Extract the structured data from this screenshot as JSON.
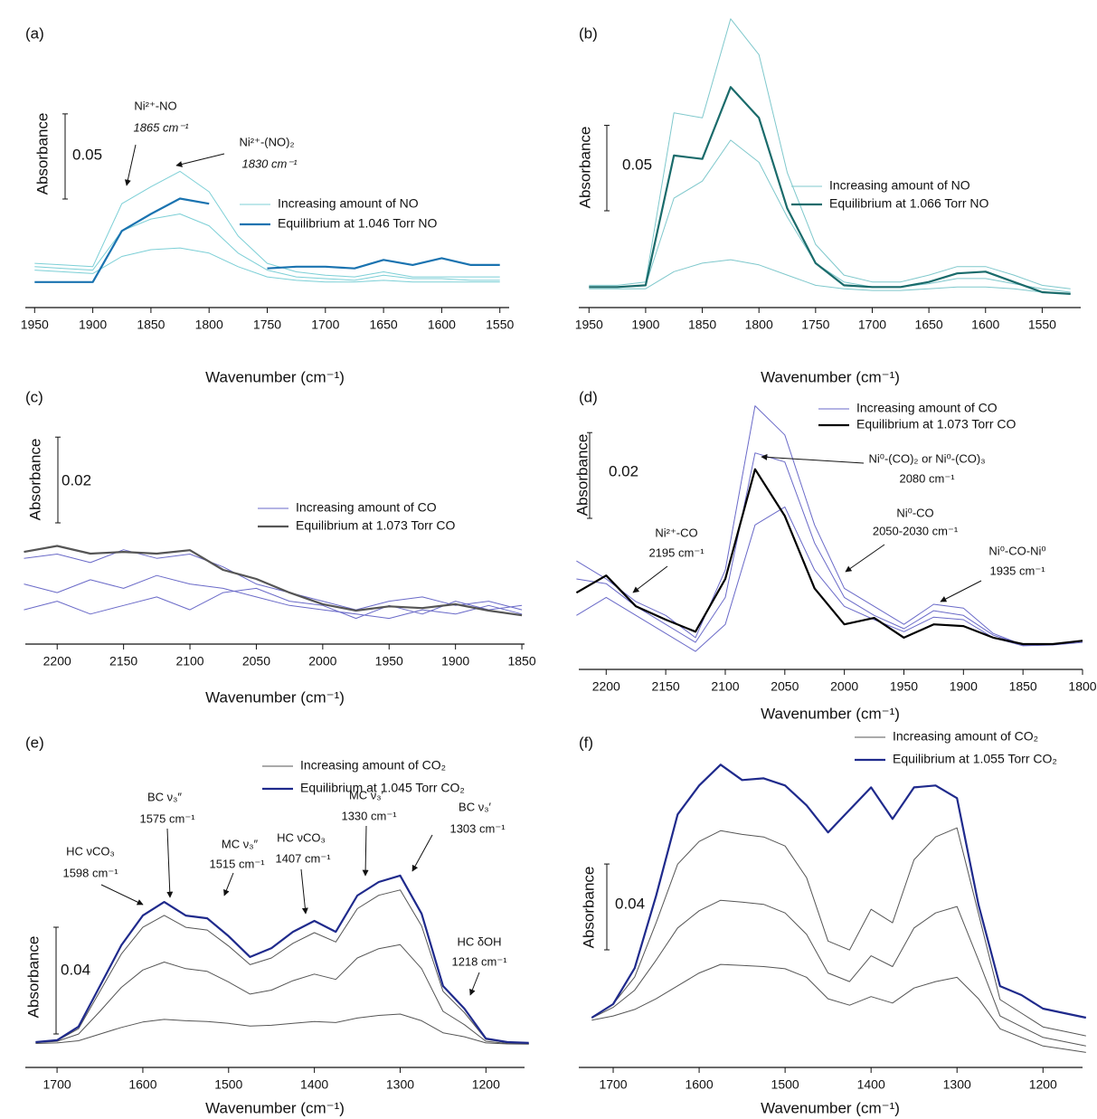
{
  "chart_data": [
    {
      "type": "line",
      "label": "(a)",
      "xlabel": "Wavenumber (cm⁻¹)",
      "ylabel": "Absorbance",
      "scale_bar": 0.05,
      "xlim": [
        1958,
        1542
      ],
      "ylim": [
        0,
        0.17
      ],
      "xticks": [
        1950,
        1900,
        1850,
        1800,
        1750,
        1700,
        1650,
        1600,
        1550
      ],
      "x": [
        1950,
        1925,
        1900,
        1875,
        1850,
        1825,
        1800,
        1775,
        1750,
        1725,
        1700,
        1675,
        1650,
        1625,
        1600,
        1575,
        1550
      ],
      "series": [
        {
          "name": "Increasing amount of NO",
          "color": "#7ccfd6",
          "line_width": 1,
          "values": [
            [
              0.026,
              0.025,
              0.024,
              0.061,
              0.071,
              0.08,
              0.068,
              0.042,
              0.026,
              0.021,
              0.019,
              0.018,
              0.021,
              0.018,
              0.018,
              0.018,
              0.018
            ],
            [
              0.024,
              0.023,
              0.022,
              0.045,
              0.052,
              0.055,
              0.048,
              0.032,
              0.022,
              0.018,
              0.017,
              0.016,
              0.019,
              0.017,
              0.017,
              0.016,
              0.016
            ],
            [
              0.022,
              0.021,
              0.02,
              0.03,
              0.034,
              0.035,
              0.032,
              0.024,
              0.018,
              0.016,
              0.015,
              0.015,
              0.016,
              0.015,
              0.015,
              0.015,
              0.015
            ]
          ]
        },
        {
          "name": "Equilibrium at 1.046 Torr NO",
          "color": "#1a73b0",
          "line_width": 2.2,
          "values": [
            [
              0.015,
              0.015,
              0.015,
              0.045,
              0.055,
              0.064,
              0.061,
              null,
              0.023,
              0.024,
              0.024,
              0.023,
              0.028,
              0.025,
              0.029,
              0.025,
              0.025
            ]
          ]
        }
      ],
      "annotations": [
        {
          "text": "Ni²⁺-NO",
          "subtext": "1865 cm⁻¹"
        },
        {
          "text": "Ni²⁺-(NO)₂",
          "subtext": "1830 cm⁻¹"
        }
      ]
    },
    {
      "type": "line",
      "label": "(b)",
      "xlabel": "Wavenumber (cm⁻¹)",
      "ylabel": "Absorbance",
      "scale_bar": 0.05,
      "xlim": [
        1959,
        1516
      ],
      "ylim": [
        0,
        0.18
      ],
      "xticks": [
        1950,
        1900,
        1850,
        1800,
        1750,
        1700,
        1650,
        1600,
        1550
      ],
      "x": [
        1950,
        1925,
        1900,
        1875,
        1850,
        1825,
        1800,
        1775,
        1750,
        1725,
        1700,
        1675,
        1650,
        1625,
        1600,
        1575,
        1550,
        1525
      ],
      "series": [
        {
          "name": "Increasing amount of NO",
          "color": "#7fc8cc",
          "line_width": 1,
          "values": [
            [
              0.013,
              0.013,
              0.015,
              0.114,
              0.111,
              0.169,
              0.148,
              0.079,
              0.037,
              0.019,
              0.015,
              0.015,
              0.019,
              0.024,
              0.024,
              0.019,
              0.013,
              0.011
            ],
            [
              0.012,
              0.012,
              0.013,
              0.064,
              0.074,
              0.098,
              0.085,
              0.053,
              0.026,
              0.015,
              0.012,
              0.012,
              0.014,
              0.017,
              0.017,
              0.014,
              0.011,
              0.009
            ],
            [
              0.011,
              0.011,
              0.011,
              0.021,
              0.026,
              0.028,
              0.025,
              0.019,
              0.013,
              0.011,
              0.01,
              0.01,
              0.011,
              0.012,
              0.012,
              0.011,
              0.009,
              0.008
            ]
          ]
        },
        {
          "name": "Equilibrium at 1.066 Torr NO",
          "color": "#1a6b6b",
          "line_width": 2.2,
          "values": [
            [
              0.012,
              0.012,
              0.013,
              0.089,
              0.087,
              0.129,
              0.111,
              0.058,
              0.026,
              0.013,
              0.012,
              0.012,
              0.015,
              0.02,
              0.021,
              0.015,
              0.009,
              0.008
            ]
          ]
        }
      ],
      "annotations": []
    },
    {
      "type": "line",
      "label": "(c)",
      "xlabel": "Wavenumber (cm⁻¹)",
      "ylabel": "Absorbance",
      "scale_bar": 0.02,
      "xlim": [
        2224,
        1848
      ],
      "ylim": [
        0,
        0.05
      ],
      "xticks": [
        2200,
        2150,
        2100,
        2050,
        2000,
        1950,
        1900,
        1850
      ],
      "x": [
        2225,
        2200,
        2175,
        2150,
        2125,
        2100,
        2075,
        2050,
        2025,
        2000,
        1975,
        1950,
        1925,
        1900,
        1875,
        1850
      ],
      "series": [
        {
          "name": "Increasing amount of CO",
          "color": "#6a6ac8",
          "line_width": 1,
          "values": [
            [
              0.02,
              0.021,
              0.019,
              0.022,
              0.02,
              0.021,
              0.018,
              0.014,
              0.012,
              0.01,
              0.008,
              0.01,
              0.011,
              0.009,
              0.01,
              0.008
            ],
            [
              0.014,
              0.012,
              0.015,
              0.013,
              0.016,
              0.014,
              0.013,
              0.011,
              0.009,
              0.008,
              0.007,
              0.006,
              0.008,
              0.007,
              0.009,
              0.007
            ],
            [
              0.008,
              0.01,
              0.007,
              0.009,
              0.011,
              0.008,
              0.012,
              0.013,
              0.01,
              0.009,
              0.006,
              0.009,
              0.007,
              0.01,
              0.008,
              0.009
            ]
          ]
        },
        {
          "name": "Equilibrium at 1.073 Torr CO",
          "color": "#555555",
          "line_width": 2.2,
          "values": [
            [
              0.0215,
              0.0229,
              0.0211,
              0.0215,
              0.0211,
              0.0219,
              0.0173,
              0.0152,
              0.012,
              0.0093,
              0.0078,
              0.0088,
              0.0084,
              0.0093,
              0.0078,
              0.0067
            ]
          ]
        }
      ],
      "annotations": []
    },
    {
      "type": "line",
      "label": "(d)",
      "xlabel": "Wavenumber (cm⁻¹)",
      "ylabel": "Absorbance",
      "scale_bar": 0.02,
      "xlim": [
        2223,
        1800
      ],
      "ylim": [
        0,
        0.065
      ],
      "xticks": [
        2200,
        2150,
        2100,
        2050,
        2000,
        1950,
        1900,
        1850,
        1800
      ],
      "x": [
        2225,
        2200,
        2175,
        2150,
        2125,
        2100,
        2075,
        2050,
        2025,
        2000,
        1975,
        1950,
        1925,
        1900,
        1875,
        1850,
        1825,
        1800
      ],
      "series": [
        {
          "name": "Increasing amount of CO",
          "color": "#6a6ac8",
          "line_width": 1,
          "values": [
            [
              0.0253,
              0.0211,
              0.0158,
              0.0126,
              0.0074,
              0.0232,
              0.0615,
              0.0547,
              0.0337,
              0.0189,
              0.0147,
              0.0105,
              0.0152,
              0.0143,
              0.0084,
              0.0057,
              0.0059,
              0.0067
            ],
            [
              0.0211,
              0.02,
              0.0147,
              0.0105,
              0.0063,
              0.0168,
              0.0505,
              0.0484,
              0.0295,
              0.0168,
              0.0126,
              0.0095,
              0.0137,
              0.0126,
              0.008,
              0.0057,
              0.0059,
              0.0067
            ],
            [
              0.0126,
              0.0168,
              0.0126,
              0.0084,
              0.0042,
              0.0105,
              0.0337,
              0.0379,
              0.0232,
              0.0147,
              0.0116,
              0.0088,
              0.0122,
              0.0116,
              0.0074,
              0.0055,
              0.0057,
              0.0063
            ]
          ]
        },
        {
          "name": "Equilibrium at 1.073 Torr CO",
          "color": "#000000",
          "line_width": 2.2,
          "values": [
            [
              0.0179,
              0.0219,
              0.0147,
              0.0116,
              0.0088,
              0.0211,
              0.0467,
              0.0358,
              0.0189,
              0.0105,
              0.012,
              0.0074,
              0.0105,
              0.0101,
              0.0074,
              0.0059,
              0.0059,
              0.0067
            ]
          ]
        }
      ],
      "annotations": [
        {
          "text": "Ni²⁺-CO",
          "subtext": "2195 cm⁻¹"
        },
        {
          "text": "Ni⁰-(CO)₂ or Ni⁰-(CO)₃",
          "subtext": "2080 cm⁻¹"
        },
        {
          "text": "Ni⁰-CO",
          "subtext": "2050-2030 cm⁻¹"
        },
        {
          "text": "Ni⁰-CO-Ni⁰",
          "subtext": "1935 cm⁻¹"
        }
      ]
    },
    {
      "type": "line",
      "label": "(e)",
      "xlabel": "Wavenumber (cm⁻¹)",
      "ylabel": "Absorbance",
      "scale_bar": 0.04,
      "xlim": [
        1737,
        1155
      ],
      "ylim": [
        0,
        0.12
      ],
      "xticks": [
        1700,
        1600,
        1500,
        1400,
        1300,
        1200
      ],
      "x": [
        1725,
        1700,
        1675,
        1650,
        1625,
        1600,
        1575,
        1550,
        1525,
        1500,
        1475,
        1450,
        1425,
        1400,
        1375,
        1350,
        1325,
        1300,
        1275,
        1250,
        1225,
        1200,
        1175,
        1150
      ],
      "series": [
        {
          "name": "Increasing amount of CO₂",
          "color": "#555555",
          "line_width": 1,
          "values": [
            [
              0.0095,
              0.01,
              0.0145,
              0.0285,
              0.0425,
              0.0525,
              0.057,
              0.0525,
              0.0515,
              0.0455,
              0.0385,
              0.041,
              0.0465,
              0.0505,
              0.047,
              0.0595,
              0.0645,
              0.0665,
              0.053,
              0.0285,
              0.0205,
              0.0105,
              0.0093,
              0.009
            ],
            [
              0.0093,
              0.0098,
              0.0125,
              0.021,
              0.03,
              0.0365,
              0.0395,
              0.037,
              0.036,
              0.032,
              0.0275,
              0.029,
              0.0325,
              0.035,
              0.033,
              0.041,
              0.0445,
              0.046,
              0.037,
              0.021,
              0.016,
              0.0098,
              0.009,
              0.0088
            ],
            [
              0.009,
              0.0092,
              0.01,
              0.0125,
              0.015,
              0.017,
              0.018,
              0.0175,
              0.0172,
              0.0165,
              0.0155,
              0.0158,
              0.0165,
              0.0172,
              0.0168,
              0.0185,
              0.0195,
              0.02,
              0.0175,
              0.013,
              0.0115,
              0.0092,
              0.0088,
              0.0087
            ]
          ]
        },
        {
          "name": "Equilibrium at 1.045 Torr CO₂",
          "color": "#1f2a8c",
          "line_width": 2.2,
          "values": [
            [
              0.0095,
              0.0102,
              0.0153,
              0.0305,
              0.0458,
              0.0569,
              0.062,
              0.0569,
              0.0559,
              0.0492,
              0.0414,
              0.0447,
              0.0508,
              0.0549,
              0.0508,
              0.0644,
              0.0695,
              0.0719,
              0.0576,
              0.0305,
              0.022,
              0.0108,
              0.0095,
              0.0092
            ]
          ]
        }
      ],
      "annotations": [
        {
          "text": "HC νCO₃",
          "subtext": "1598 cm⁻¹"
        },
        {
          "text": "BC ν₃″",
          "subtext": "1575 cm⁻¹"
        },
        {
          "text": "MC ν₃″",
          "subtext": "1515 cm⁻¹"
        },
        {
          "text": "HC νCO₃",
          "subtext": "1407 cm⁻¹"
        },
        {
          "text": "MC ν₃′",
          "subtext": "1330 cm⁻¹"
        },
        {
          "text": "BC ν₃′",
          "subtext": "1303 cm⁻¹"
        },
        {
          "text": "HC δOH",
          "subtext": "1218 cm⁻¹"
        }
      ]
    },
    {
      "type": "line",
      "label": "(f)",
      "xlabel": "Wavenumber (cm⁻¹)",
      "ylabel": "Absorbance",
      "scale_bar": 0.04,
      "xlim": [
        1740,
        1154
      ],
      "ylim": [
        0,
        0.145
      ],
      "xticks": [
        1700,
        1600,
        1500,
        1400,
        1300,
        1200
      ],
      "x": [
        1725,
        1700,
        1675,
        1650,
        1625,
        1600,
        1575,
        1550,
        1525,
        1500,
        1475,
        1450,
        1425,
        1400,
        1375,
        1350,
        1325,
        1300,
        1275,
        1250,
        1225,
        1200,
        1175,
        1150
      ],
      "series": [
        {
          "name": "Increasing amount of CO₂",
          "color": "#555555",
          "line_width": 1,
          "values": [
            [
              0.0232,
              0.0295,
              0.0421,
              0.0674,
              0.0947,
              0.1053,
              0.1103,
              0.1086,
              0.1074,
              0.1032,
              0.0884,
              0.0589,
              0.0547,
              0.0737,
              0.0674,
              0.0968,
              0.1074,
              0.1116,
              0.0716,
              0.0316,
              0.0253,
              0.0189,
              0.0168,
              0.0147
            ],
            [
              0.023,
              0.028,
              0.036,
              0.05,
              0.065,
              0.073,
              0.0779,
              0.077,
              0.076,
              0.072,
              0.062,
              0.044,
              0.04,
              0.052,
              0.047,
              0.065,
              0.072,
              0.075,
              0.05,
              0.024,
              0.019,
              0.014,
              0.012,
              0.01
            ],
            [
              0.022,
              0.024,
              0.027,
              0.032,
              0.038,
              0.044,
              0.048,
              0.0475,
              0.047,
              0.046,
              0.042,
              0.032,
              0.029,
              0.033,
              0.03,
              0.037,
              0.04,
              0.042,
              0.032,
              0.018,
              0.014,
              0.01,
              0.0085,
              0.007
            ]
          ]
        },
        {
          "name": "Equilibrium at 1.055 Torr CO₂",
          "color": "#1f2a8c",
          "line_width": 2.2,
          "values": [
            [
              0.0232,
              0.0295,
              0.0463,
              0.08,
              0.1179,
              0.1314,
              0.1411,
              0.1339,
              0.1347,
              0.1314,
              0.1221,
              0.1095,
              0.12,
              0.1305,
              0.1158,
              0.1305,
              0.1314,
              0.1255,
              0.0758,
              0.0379,
              0.0337,
              0.0274,
              0.0253,
              0.0232
            ]
          ]
        }
      ],
      "annotations": []
    }
  ]
}
